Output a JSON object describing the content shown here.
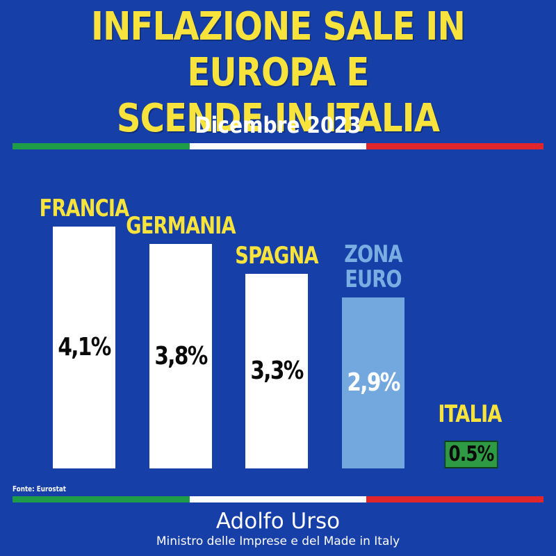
{
  "header": {
    "title_line1": "INFLAZIONE SALE IN EUROPA E",
    "title_line2": "SCENDE IN ITALIA",
    "subtitle": "Dicembre 2023"
  },
  "colors": {
    "background": "#1640a8",
    "title": "#f7e33c",
    "bar_default": "#ffffff",
    "bar_eurozone": "#73a8df",
    "label_eurozone": "#7aaee3",
    "italia_badge": "#2e9a43",
    "flag_green": "#1f9c48",
    "flag_white": "#ffffff",
    "flag_red": "#e0262b"
  },
  "chart_data": {
    "type": "bar",
    "title": "",
    "xlabel": "",
    "ylabel": "",
    "ylim": [
      0,
      4.5
    ],
    "categories": [
      "FRANCIA",
      "GERMANIA",
      "SPAGNA",
      "ZONA EURO",
      "ITALIA"
    ],
    "values": [
      4.1,
      3.8,
      3.3,
      2.9,
      0.5
    ],
    "value_labels": [
      "4,1%",
      "3,8%",
      "3,3%",
      "2,9%",
      "0.5%"
    ],
    "grid": false,
    "legend": "none"
  },
  "footer": {
    "source": "Fonte: Eurostat",
    "author": "Adolfo Urso",
    "role": "Ministro delle Imprese e del Made in Italy"
  }
}
